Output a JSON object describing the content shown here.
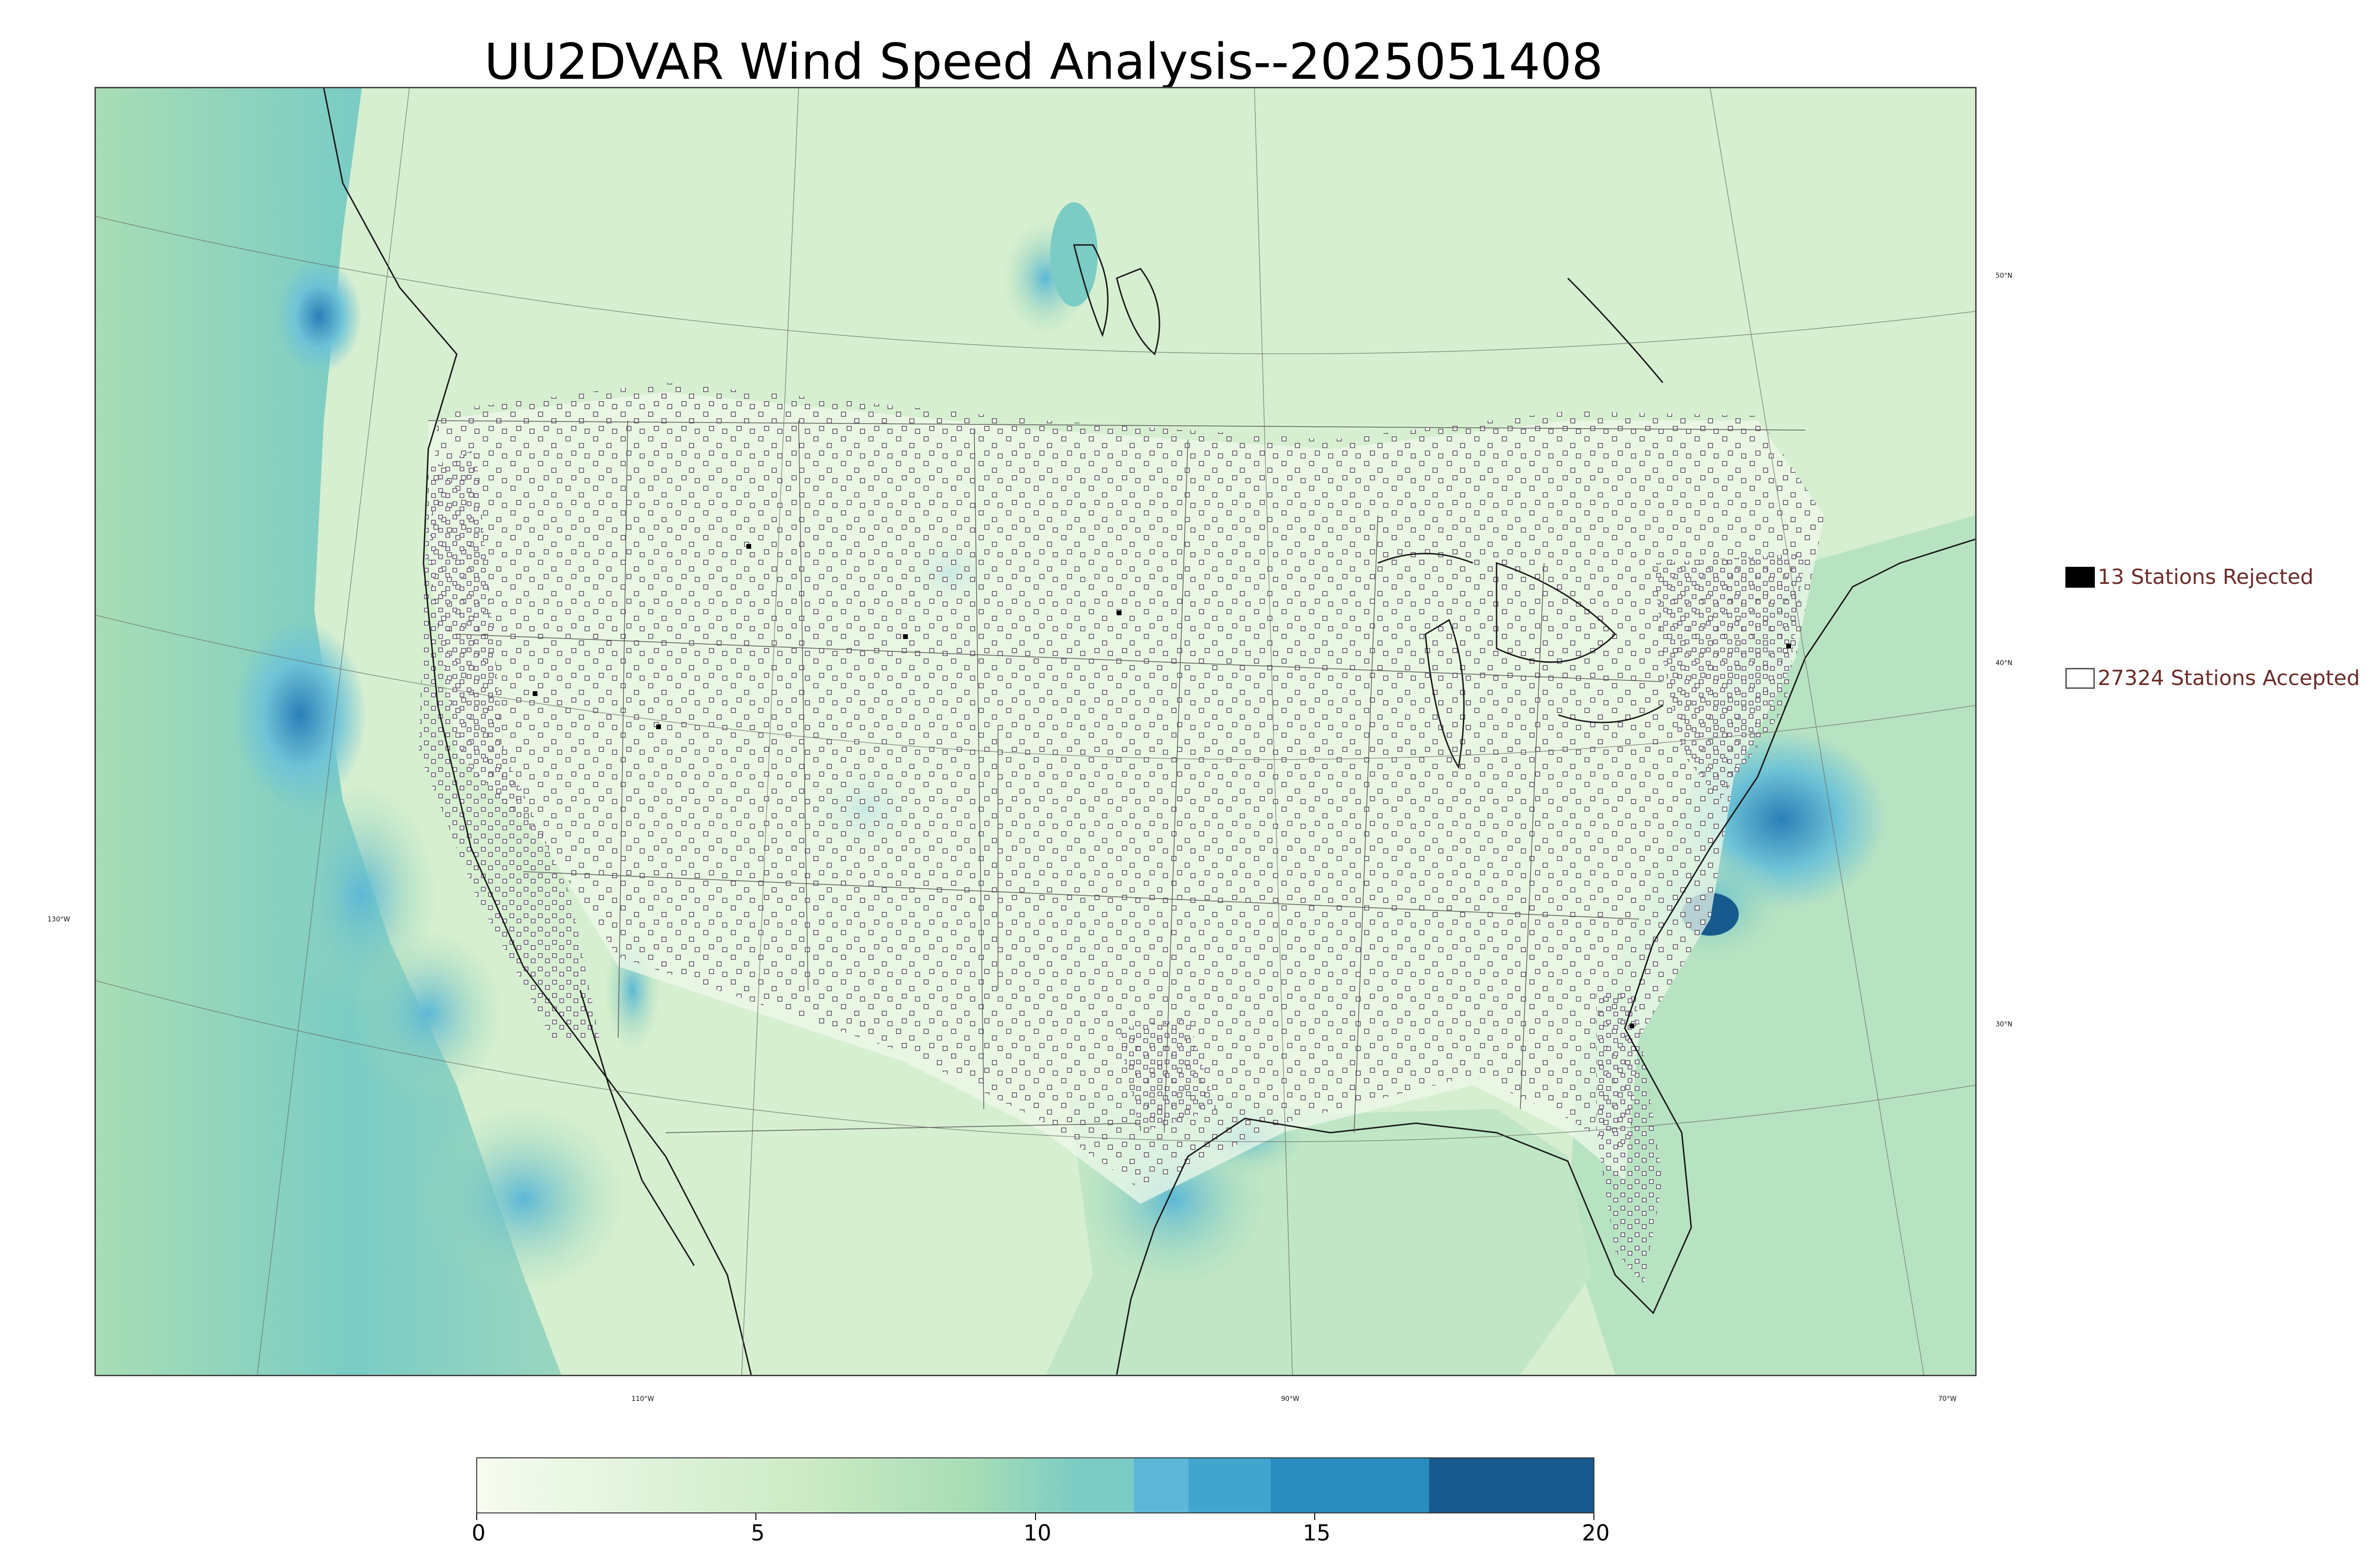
{
  "title": "UU2DVAR Wind Speed Analysis--2025051408",
  "legend": {
    "rejected_label": "13 Stations Rejected",
    "accepted_label": "27324 Stations Accepted"
  },
  "graticule": {
    "longitudes": [
      "130°W",
      "110°W",
      "90°W",
      "70°W"
    ],
    "latitudes": [
      "50°N",
      "40°N",
      "30°N"
    ]
  },
  "colorbar": {
    "ticks": [
      "0",
      "5",
      "10",
      "15",
      "20"
    ],
    "colors": [
      "#f7fcf0",
      "#e0f3db",
      "#ccebc5",
      "#a8ddb5",
      "#7bccc4",
      "#4eb3d3",
      "#2b8cbe",
      "#0868ac",
      "#165a8e"
    ]
  },
  "colors": {
    "land_base": "#dff2db",
    "ocean_wind": "#6fc3d6",
    "strong_wind": "#2a7fb8",
    "station_accepted": "#ffffff",
    "station_rejected": "#000000",
    "title_legend_text": "#6b2d2a"
  }
}
